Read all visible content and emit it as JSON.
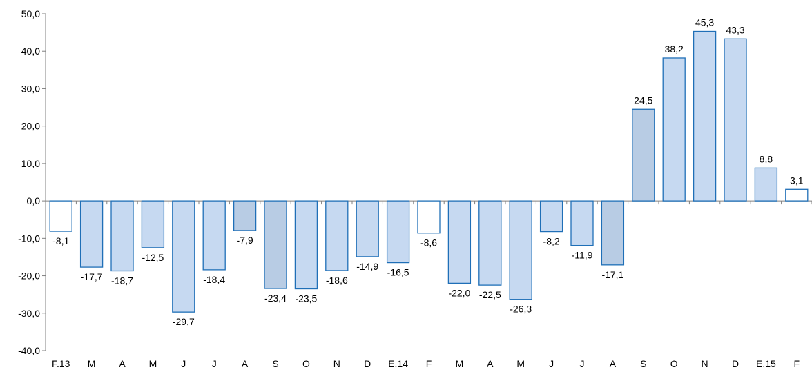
{
  "chart_data": {
    "type": "bar",
    "title": "",
    "xlabel": "",
    "ylabel": "",
    "ylim": [
      -40,
      50
    ],
    "ytick_step": 10,
    "yticks": [
      "50,0",
      "40,0",
      "30,0",
      "20,0",
      "10,0",
      "0,0",
      "-10,0",
      "-20,0",
      "-30,0",
      "-40,0"
    ],
    "grid": false,
    "legend": "none",
    "categories": [
      "F.13",
      "M",
      "A",
      "M",
      "J",
      "J",
      "A",
      "S",
      "O",
      "N",
      "D",
      "E.14",
      "F",
      "M",
      "A",
      "M",
      "J",
      "J",
      "A",
      "S",
      "O",
      "N",
      "D",
      "E.15",
      "F"
    ],
    "values": [
      -8.1,
      -17.7,
      -18.7,
      -12.5,
      -29.7,
      -18.4,
      -7.9,
      -23.4,
      -23.5,
      -18.6,
      -14.9,
      -16.5,
      -8.6,
      -22.0,
      -22.5,
      -26.3,
      -8.2,
      -11.9,
      -17.1,
      24.5,
      38.2,
      45.3,
      43.3,
      8.8,
      3.1
    ],
    "value_labels": [
      "-8,1",
      "-17,7",
      "-18,7",
      "-12,5",
      "-29,7",
      "-18,4",
      "-7,9",
      "-23,4",
      "-23,5",
      "-18,6",
      "-14,9",
      "-16,5",
      "-8,6",
      "-22,0",
      "-22,5",
      "-26,3",
      "-8,2",
      "-11,9",
      "-17,1",
      "24,5",
      "38,2",
      "45,3",
      "43,3",
      "8,8",
      "3,1"
    ],
    "bar_fills": [
      "#ffffff",
      "#c6d9f1",
      "#c6d9f1",
      "#c6d9f1",
      "#c6d9f1",
      "#c6d9f1",
      "#b8cce4",
      "#b8cce4",
      "#c6d9f1",
      "#c6d9f1",
      "#c6d9f1",
      "#c6d9f1",
      "#ffffff",
      "#c6d9f1",
      "#c6d9f1",
      "#c6d9f1",
      "#c6d9f1",
      "#c6d9f1",
      "#b8cce4",
      "#b8cce4",
      "#c6d9f1",
      "#c6d9f1",
      "#c6d9f1",
      "#c6d9f1",
      "#ffffff"
    ],
    "colors": {
      "bar_stroke": "#1f6fb7",
      "axis": "#808080",
      "text": "#000000"
    }
  }
}
